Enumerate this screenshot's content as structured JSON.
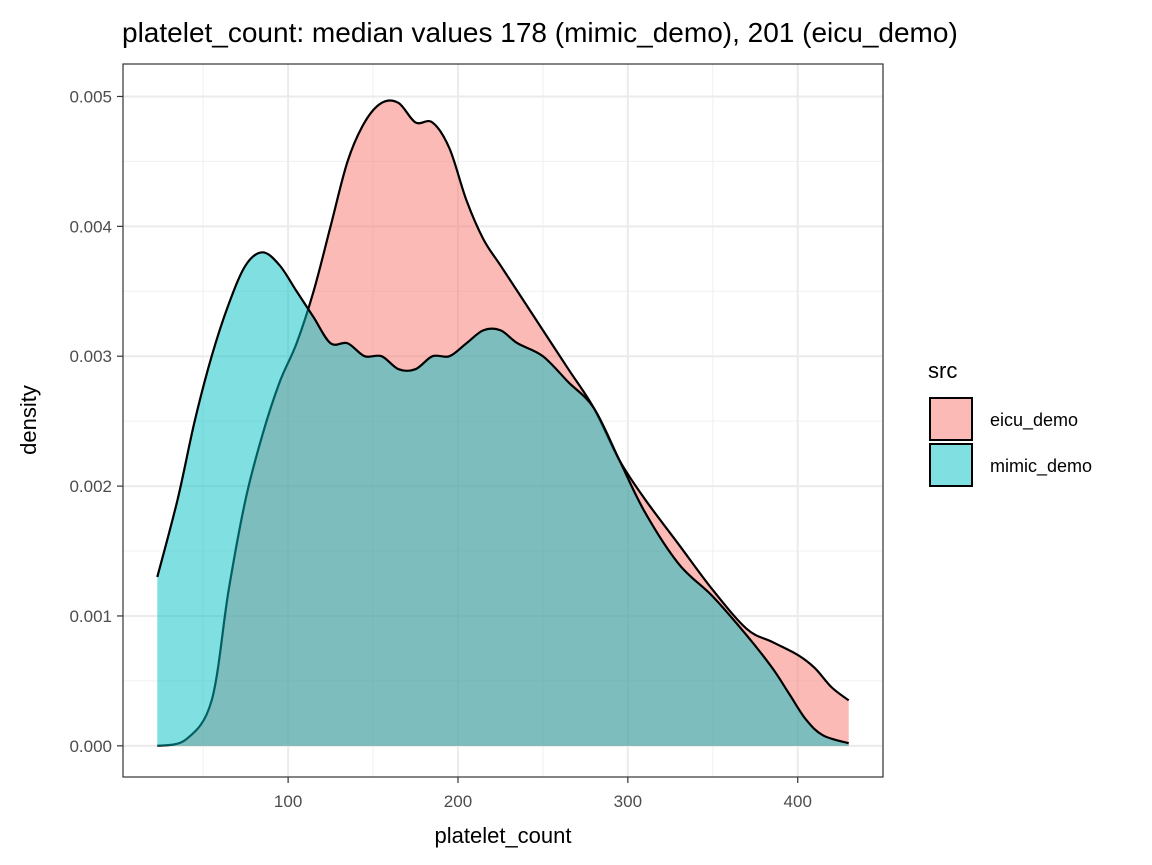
{
  "chart_data": {
    "type": "area",
    "title": "platelet_count: median values 178 (mimic_demo), 201 (eicu_demo)",
    "xlabel": "platelet_count",
    "ylabel": "density",
    "xlim": [
      2.8,
      450.2
    ],
    "ylim": [
      -0.00024,
      0.00525
    ],
    "x_ticks": [
      100,
      200,
      300,
      400
    ],
    "x_tick_labels": [
      "100",
      "200",
      "300",
      "400"
    ],
    "y_ticks": [
      0.0,
      0.001,
      0.002,
      0.003,
      0.004,
      0.005
    ],
    "y_tick_labels": [
      "0.000",
      "0.001",
      "0.002",
      "0.003",
      "0.004",
      "0.005"
    ],
    "grid": true,
    "legend_title": "src",
    "legend_position": "right",
    "series": [
      {
        "name": "eicu_demo",
        "color": "#F8766D",
        "fill_opacity": 0.5,
        "x": [
          23,
          40,
          55,
          65,
          75,
          85,
          95,
          105,
          115,
          125,
          135,
          145,
          155,
          165,
          175,
          185,
          195,
          205,
          215,
          225,
          235,
          250,
          265,
          280,
          295,
          310,
          330,
          350,
          370,
          385,
          400,
          410,
          420,
          430
        ],
        "y": [
          0.0,
          5e-05,
          0.00035,
          0.0012,
          0.0019,
          0.0024,
          0.0028,
          0.0031,
          0.0035,
          0.004,
          0.0045,
          0.0048,
          0.00495,
          0.00495,
          0.0048,
          0.0048,
          0.0046,
          0.0042,
          0.0039,
          0.0037,
          0.0035,
          0.0032,
          0.0029,
          0.0026,
          0.0022,
          0.0019,
          0.00155,
          0.0012,
          0.0009,
          0.0008,
          0.0007,
          0.0006,
          0.00045,
          0.00035
        ]
      },
      {
        "name": "mimic_demo",
        "color": "#00BFC4",
        "fill_opacity": 0.5,
        "x": [
          23,
          35,
          45,
          55,
          65,
          75,
          85,
          95,
          105,
          115,
          125,
          135,
          145,
          155,
          165,
          175,
          185,
          195,
          205,
          215,
          225,
          235,
          250,
          265,
          280,
          295,
          310,
          330,
          350,
          370,
          385,
          395,
          405,
          415,
          430
        ],
        "y": [
          0.0013,
          0.0019,
          0.0025,
          0.003,
          0.0034,
          0.0037,
          0.0038,
          0.0037,
          0.0035,
          0.0033,
          0.0031,
          0.0031,
          0.003,
          0.003,
          0.0029,
          0.0029,
          0.003,
          0.003,
          0.0031,
          0.0032,
          0.0032,
          0.0031,
          0.003,
          0.0028,
          0.0026,
          0.0022,
          0.0018,
          0.0014,
          0.00115,
          0.00085,
          0.0006,
          0.0004,
          0.0002,
          8e-05,
          2e-05
        ]
      }
    ]
  }
}
